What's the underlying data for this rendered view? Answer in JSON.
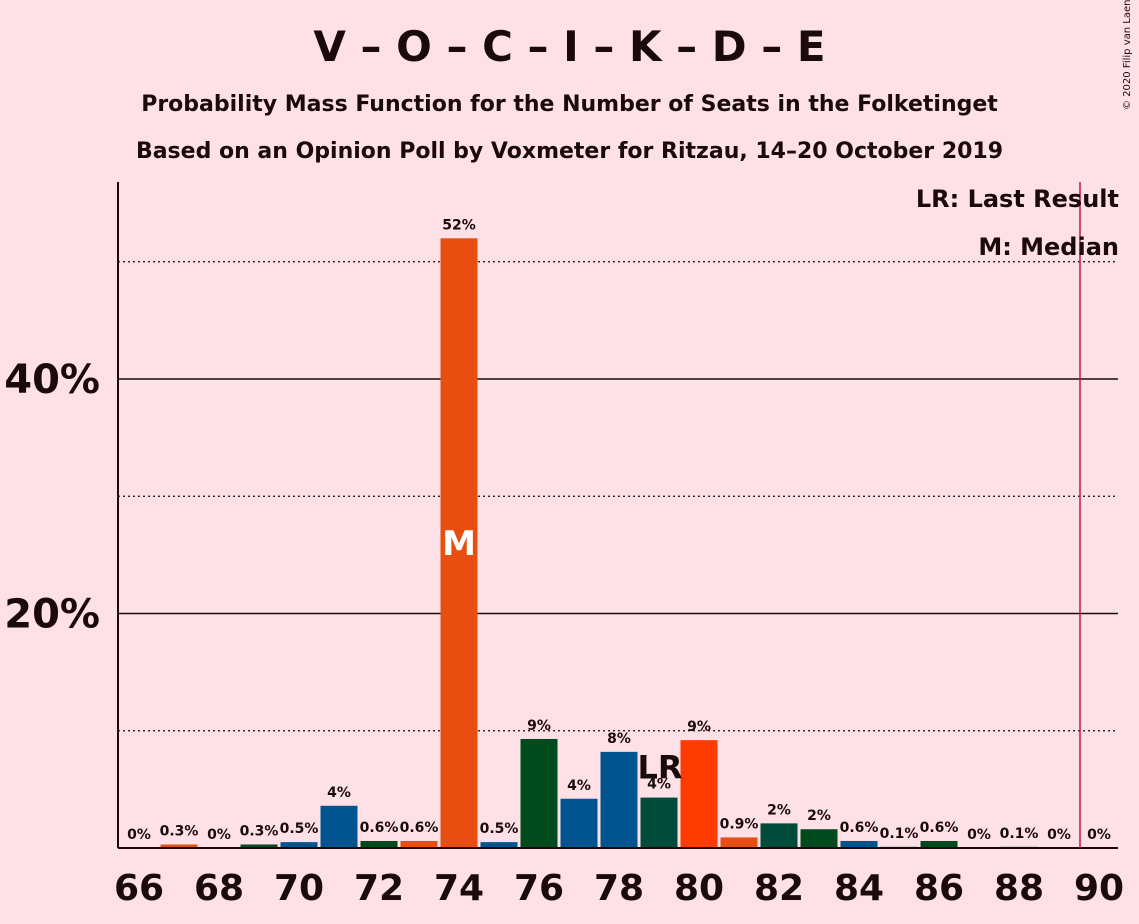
{
  "chart_data": {
    "type": "bar",
    "title": "V – O – C – I – K – D – E",
    "subtitle": "Probability Mass Function for the Number of Seats in the Folketinget",
    "subtitle2": "Based on an Opinion Poll by Voxmeter for Ritzau, 14–20 October 2019",
    "copyright": "© 2020 Filip van Laenen",
    "legend": {
      "last_result": "LR: Last Result",
      "median": "M: Median",
      "placement": "top-right"
    },
    "x": [
      66,
      67,
      68,
      69,
      70,
      71,
      72,
      73,
      74,
      75,
      76,
      77,
      78,
      79,
      80,
      81,
      82,
      83,
      84,
      85,
      86,
      87,
      88,
      89,
      90
    ],
    "values": [
      0,
      0.3,
      0,
      0.3,
      0.5,
      3.6,
      0.6,
      0.6,
      52,
      0.5,
      9.3,
      4.2,
      8.2,
      4.3,
      9.2,
      0.9,
      2.1,
      1.6,
      0.6,
      0.1,
      0.6,
      0,
      0.1,
      0,
      0
    ],
    "value_labels": [
      "0%",
      "0.3%",
      "0%",
      "0.3%",
      "0.5%",
      "4%",
      "0.6%",
      "0.6%",
      "52%",
      "0.5%",
      "9%",
      "4%",
      "8%",
      "4%",
      "9%",
      "0.9%",
      "2%",
      "2%",
      "0.6%",
      "0.1%",
      "0.6%",
      "0%",
      "0.1%",
      "0%",
      "0%"
    ],
    "bar_colors": [
      "#E84E10",
      "#E84E10",
      "#004B1E",
      "#004B1E",
      "#00548F",
      "#00548F",
      "#004B1E",
      "#E84E10",
      "#E84E10",
      "#00548F",
      "#004B1E",
      "#00548F",
      "#00548F",
      "#004B3A",
      "#FF3C00",
      "#E84E10",
      "#004B3A",
      "#004B1E",
      "#00548F",
      "#004B1E",
      "#004B1E",
      "#E84E10",
      "#00548F",
      "#004B1E",
      "#E84E10"
    ],
    "xticks": [
      66,
      68,
      70,
      72,
      74,
      76,
      78,
      80,
      82,
      84,
      86,
      88,
      90
    ],
    "yticks": [
      {
        "value": 20,
        "label": "20%"
      },
      {
        "value": 40,
        "label": "40%"
      }
    ],
    "dotted_gridlines": [
      10,
      30,
      50
    ],
    "ylim": [
      0,
      56
    ],
    "median": {
      "seat": 74,
      "label": "M"
    },
    "last_result": {
      "seat": 79,
      "label": "LR"
    },
    "majority_line": {
      "seat": 89.5,
      "color": "#C0144C"
    }
  }
}
